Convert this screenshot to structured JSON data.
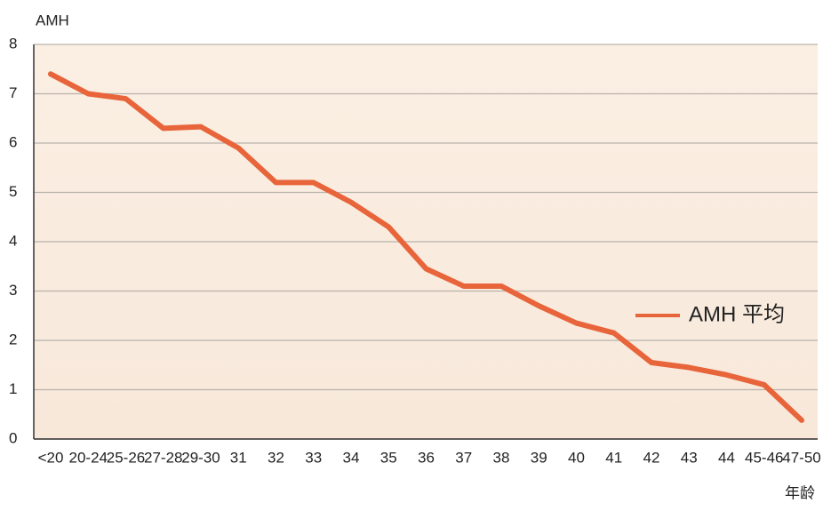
{
  "chart_data": {
    "type": "line",
    "y_label": "AMH",
    "x_label": "年龄",
    "categories": [
      "<20",
      "20-24",
      "25-26",
      "27-28",
      "29-30",
      "31",
      "32",
      "33",
      "34",
      "35",
      "36",
      "37",
      "38",
      "39",
      "40",
      "41",
      "42",
      "43",
      "44",
      "45-46",
      "47-50"
    ],
    "series": [
      {
        "name": "AMH 平均",
        "color": "#e8643a",
        "values": [
          7.4,
          7.0,
          6.9,
          6.3,
          6.33,
          5.9,
          5.2,
          5.2,
          4.8,
          4.3,
          3.45,
          3.1,
          3.1,
          2.7,
          2.35,
          2.15,
          1.55,
          1.45,
          1.3,
          1.1,
          0.38
        ]
      }
    ],
    "ylim": [
      0,
      8
    ],
    "yticks": [
      0,
      1,
      2,
      3,
      4,
      5,
      6,
      7,
      8
    ],
    "grid": true,
    "legend": "right"
  }
}
